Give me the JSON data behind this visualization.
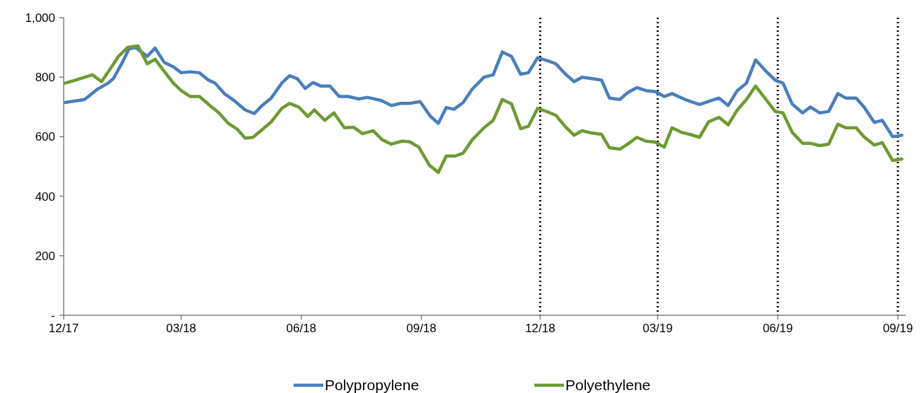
{
  "chart_data": {
    "type": "line",
    "xlim": [
      "2017-12-01",
      "2019-09-07"
    ],
    "ylim": [
      0,
      1000
    ],
    "xticks": [
      {
        "value": "2017-12-01",
        "label": "12/17"
      },
      {
        "value": "2018-03-01",
        "label": "03/18"
      },
      {
        "value": "2018-06-01",
        "label": "06/18"
      },
      {
        "value": "2018-09-01",
        "label": "09/18"
      },
      {
        "value": "2018-12-01",
        "label": "12/18"
      },
      {
        "value": "2019-03-01",
        "label": "03/19"
      },
      {
        "value": "2019-06-01",
        "label": "06/19"
      },
      {
        "value": "2019-09-01",
        "label": "09/19"
      }
    ],
    "yticks": [
      {
        "value": 0,
        "label": "-"
      },
      200,
      400,
      600,
      800,
      {
        "value": 1000,
        "label": "1,000"
      }
    ],
    "grid": false,
    "legend": "bottom",
    "marker": "none",
    "line_style": "solid",
    "ref_lines": [
      {
        "axis": "x",
        "value": "2018-12-01",
        "line_style": "dotted",
        "color": "#000000"
      },
      {
        "axis": "x",
        "value": "2019-03-01",
        "line_style": "dotted",
        "color": "#000000"
      },
      {
        "axis": "x",
        "value": "2019-06-01",
        "line_style": "dotted",
        "color": "#000000"
      },
      {
        "axis": "x",
        "value": "2019-09-01",
        "line_style": "dotted",
        "color": "#000000"
      }
    ],
    "series": [
      {
        "name": "Polypropylene",
        "color": "#4a7ebb",
        "x": [
          "2017-12-02",
          "2017-12-17",
          "2017-12-27",
          "2018-01-04",
          "2018-01-08",
          "2018-01-15",
          "2018-01-20",
          "2018-01-25",
          "2018-02-03",
          "2018-02-09",
          "2018-02-16",
          "2018-02-23",
          "2018-03-01",
          "2018-03-08",
          "2018-03-15",
          "2018-03-22",
          "2018-03-27",
          "2018-04-03",
          "2018-04-11",
          "2018-04-19",
          "2018-04-26",
          "2018-05-02",
          "2018-05-09",
          "2018-05-17",
          "2018-05-23",
          "2018-05-29",
          "2018-06-04",
          "2018-06-10",
          "2018-06-16",
          "2018-06-23",
          "2018-06-30",
          "2018-07-07",
          "2018-07-15",
          "2018-07-22",
          "2018-08-01",
          "2018-08-09",
          "2018-08-16",
          "2018-08-23",
          "2018-08-31",
          "2018-09-08",
          "2018-09-14",
          "2018-09-20",
          "2018-09-26",
          "2018-10-03",
          "2018-10-10",
          "2018-10-19",
          "2018-10-26",
          "2018-11-02",
          "2018-11-09",
          "2018-11-16",
          "2018-11-22",
          "2018-11-29",
          "2018-12-07",
          "2018-12-13",
          "2018-12-20",
          "2018-12-27",
          "2019-01-02",
          "2019-01-10",
          "2019-01-17",
          "2019-01-23",
          "2019-01-31",
          "2019-02-06",
          "2019-02-13",
          "2019-02-20",
          "2019-02-27",
          "2019-03-06",
          "2019-03-12",
          "2019-03-22",
          "2019-04-02",
          "2019-04-10",
          "2019-04-17",
          "2019-04-24",
          "2019-05-01",
          "2019-05-08",
          "2019-05-15",
          "2019-05-23",
          "2019-05-30",
          "2019-06-05",
          "2019-06-12",
          "2019-06-20",
          "2019-06-26",
          "2019-07-03",
          "2019-07-10",
          "2019-07-17",
          "2019-07-23",
          "2019-07-31",
          "2019-08-06",
          "2019-08-14",
          "2019-08-20",
          "2019-08-28",
          "2019-09-04"
        ],
        "values": [
          715,
          725,
          760,
          780,
          795,
          850,
          895,
          900,
          870,
          898,
          850,
          835,
          815,
          818,
          815,
          790,
          780,
          745,
          720,
          690,
          678,
          705,
          730,
          780,
          805,
          795,
          762,
          782,
          770,
          770,
          735,
          735,
          727,
          732,
          722,
          705,
          712,
          712,
          718,
          668,
          645,
          698,
          692,
          715,
          760,
          800,
          808,
          885,
          870,
          810,
          815,
          865,
          855,
          845,
          812,
          785,
          800,
          795,
          790,
          730,
          725,
          748,
          765,
          755,
          752,
          735,
          745,
          725,
          708,
          720,
          730,
          705,
          755,
          780,
          858,
          820,
          790,
          780,
          710,
          680,
          700,
          680,
          685,
          745,
          730,
          730,
          700,
          648,
          655,
          600,
          605
        ]
      },
      {
        "name": "Polyethylene",
        "color": "#6e9a32",
        "x": [
          "2017-12-02",
          "2017-12-10",
          "2017-12-23",
          "2017-12-30",
          "2018-01-06",
          "2018-01-12",
          "2018-01-19",
          "2018-01-27",
          "2018-02-03",
          "2018-02-09",
          "2018-02-16",
          "2018-02-23",
          "2018-03-01",
          "2018-03-08",
          "2018-03-15",
          "2018-03-23",
          "2018-03-30",
          "2018-04-06",
          "2018-04-13",
          "2018-04-19",
          "2018-04-25",
          "2018-05-01",
          "2018-05-09",
          "2018-05-17",
          "2018-05-23",
          "2018-05-30",
          "2018-06-06",
          "2018-06-11",
          "2018-06-19",
          "2018-06-26",
          "2018-07-04",
          "2018-07-11",
          "2018-07-18",
          "2018-07-26",
          "2018-08-02",
          "2018-08-09",
          "2018-08-17",
          "2018-08-23",
          "2018-08-30",
          "2018-09-07",
          "2018-09-14",
          "2018-09-20",
          "2018-09-27",
          "2018-10-03",
          "2018-10-10",
          "2018-10-19",
          "2018-10-26",
          "2018-11-02",
          "2018-11-09",
          "2018-11-16",
          "2018-11-22",
          "2018-11-29",
          "2018-12-07",
          "2018-12-13",
          "2018-12-20",
          "2018-12-27",
          "2019-01-02",
          "2019-01-10",
          "2019-01-17",
          "2019-01-23",
          "2019-01-31",
          "2019-02-06",
          "2019-02-13",
          "2019-02-20",
          "2019-02-27",
          "2019-03-06",
          "2019-03-12",
          "2019-03-19",
          "2019-03-28",
          "2019-04-02",
          "2019-04-09",
          "2019-04-17",
          "2019-04-24",
          "2019-05-01",
          "2019-05-08",
          "2019-05-15",
          "2019-05-23",
          "2019-05-30",
          "2019-06-05",
          "2019-06-12",
          "2019-06-20",
          "2019-06-26",
          "2019-07-03",
          "2019-07-10",
          "2019-07-17",
          "2019-07-23",
          "2019-07-31",
          "2019-08-06",
          "2019-08-14",
          "2019-08-20",
          "2019-08-28",
          "2019-09-04"
        ],
        "values": [
          780,
          790,
          808,
          785,
          830,
          870,
          900,
          905,
          845,
          860,
          820,
          780,
          755,
          735,
          735,
          705,
          680,
          645,
          625,
          595,
          598,
          620,
          650,
          695,
          712,
          700,
          668,
          690,
          655,
          680,
          630,
          632,
          610,
          620,
          590,
          575,
          585,
          583,
          565,
          505,
          480,
          535,
          535,
          545,
          590,
          630,
          655,
          725,
          710,
          627,
          635,
          695,
          683,
          672,
          635,
          605,
          620,
          612,
          608,
          563,
          558,
          575,
          598,
          585,
          582,
          565,
          630,
          615,
          605,
          598,
          650,
          665,
          640,
          690,
          725,
          770,
          725,
          685,
          680,
          615,
          578,
          578,
          570,
          575,
          642,
          630,
          630,
          600,
          572,
          580,
          520,
          525
        ]
      }
    ]
  }
}
